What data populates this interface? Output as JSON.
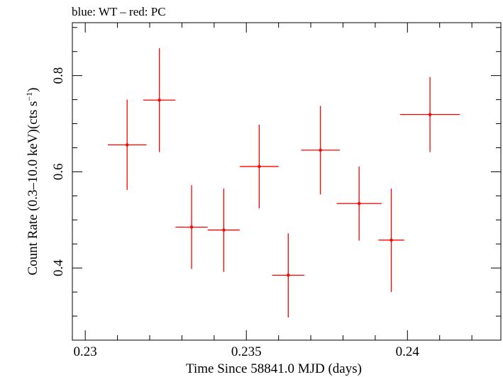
{
  "chart_data": {
    "type": "scatter",
    "title": "blue: WT – red: PC",
    "xlabel": "Time Since 58841.0 MJD (days)",
    "ylabel_main": "Count Rate (0.3–10.0 keV)(cts s",
    "ylabel_sup": "−1",
    "ylabel_end": ")",
    "xlim": [
      0.2296,
      0.2429
    ],
    "ylim": [
      0.25,
      0.91
    ],
    "x_ticks": [
      0.23,
      0.235,
      0.24
    ],
    "x_tick_labels": [
      "0.23",
      "0.235",
      "0.24"
    ],
    "y_ticks": [
      0.4,
      0.6,
      0.8
    ],
    "y_tick_labels": [
      "0.4",
      "0.6",
      "0.8"
    ],
    "grid": false,
    "series": [
      {
        "color": "#ff0000",
        "points": [
          {
            "x": 0.2313,
            "y": 0.656,
            "xerr": 0.0006,
            "ylo": 0.562,
            "yhi": 0.75
          },
          {
            "x": 0.2323,
            "y": 0.749,
            "xerr": 0.0005,
            "ylo": 0.641,
            "yhi": 0.857
          },
          {
            "x": 0.2333,
            "y": 0.485,
            "xerr": 0.0005,
            "ylo": 0.398,
            "yhi": 0.572
          },
          {
            "x": 0.2343,
            "y": 0.479,
            "xerr": 0.0005,
            "ylo": 0.392,
            "yhi": 0.565
          },
          {
            "x": 0.2354,
            "y": 0.611,
            "xerr": 0.0006,
            "ylo": 0.524,
            "yhi": 0.698
          },
          {
            "x": 0.2363,
            "y": 0.385,
            "xerr": 0.0005,
            "ylo": 0.297,
            "yhi": 0.472
          },
          {
            "x": 0.2373,
            "y": 0.645,
            "xerr": 0.0006,
            "ylo": 0.553,
            "yhi": 0.737
          },
          {
            "x": 0.2385,
            "y": 0.534,
            "xerr": 0.0007,
            "ylo": 0.457,
            "yhi": 0.611
          },
          {
            "x": 0.2395,
            "y": 0.458,
            "xerr": 0.0004,
            "ylo": 0.35,
            "yhi": 0.565
          },
          {
            "x": 0.2407,
            "y": 0.719,
            "xerr": 0.00093,
            "ylo": 0.641,
            "yhi": 0.797
          }
        ]
      }
    ]
  }
}
